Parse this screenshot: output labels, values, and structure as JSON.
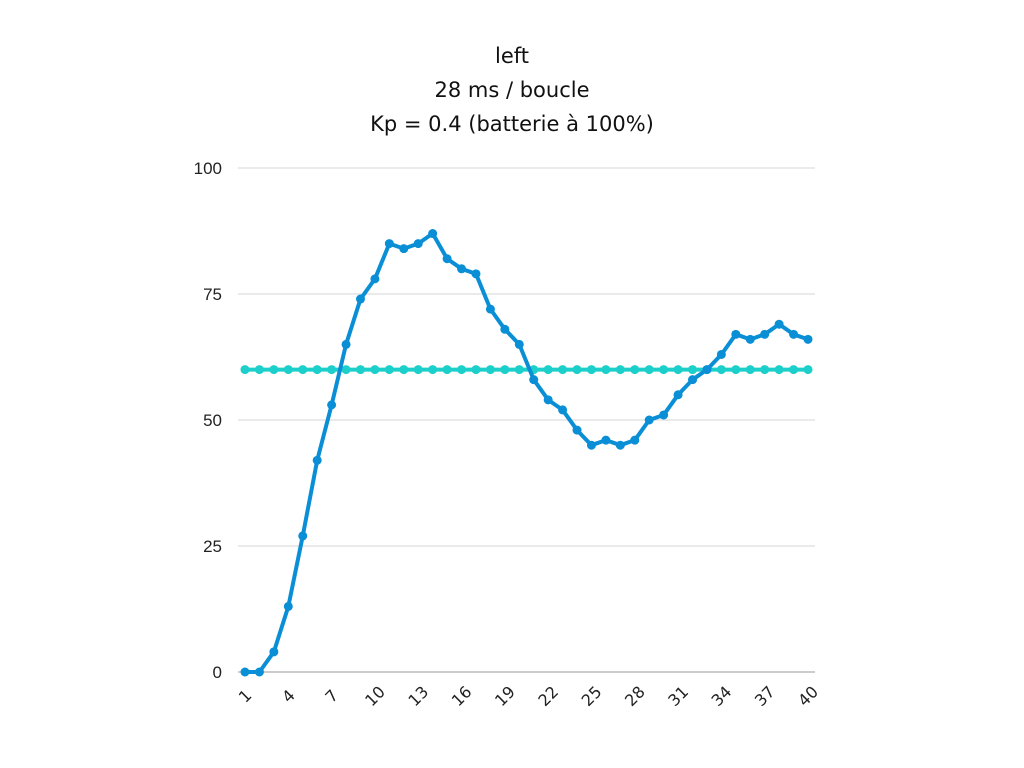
{
  "chart_data": {
    "type": "line",
    "title": [
      "left",
      "28 ms / boucle",
      "Kp = 0.4 (batterie à 100%)"
    ],
    "xlabel": "",
    "ylabel": "",
    "ylim": [
      0,
      100
    ],
    "y_ticks": [
      0,
      25,
      50,
      75,
      100
    ],
    "x": [
      1,
      2,
      3,
      4,
      5,
      6,
      7,
      8,
      9,
      10,
      11,
      12,
      13,
      14,
      15,
      16,
      17,
      18,
      19,
      20,
      21,
      22,
      23,
      24,
      25,
      26,
      27,
      28,
      29,
      30,
      31,
      32,
      33,
      34,
      35,
      36,
      37,
      38,
      39,
      40
    ],
    "x_tick_labels": [
      "1",
      "4",
      "7",
      "10",
      "13",
      "16",
      "19",
      "22",
      "25",
      "28",
      "31",
      "34",
      "37",
      "40"
    ],
    "grid": true,
    "series": [
      {
        "color": "#0a8fd6",
        "values": [
          0,
          0,
          4,
          13,
          27,
          42,
          53,
          65,
          74,
          78,
          85,
          84,
          85,
          87,
          82,
          80,
          79,
          72,
          68,
          65,
          58,
          54,
          52,
          48,
          45,
          46,
          45,
          46,
          50,
          51,
          55,
          58,
          60,
          63,
          67,
          66,
          67,
          69,
          67,
          66
        ]
      },
      {
        "color": "#1ccfca",
        "values": [
          60,
          60,
          60,
          60,
          60,
          60,
          60,
          60,
          60,
          60,
          60,
          60,
          60,
          60,
          60,
          60,
          60,
          60,
          60,
          60,
          60,
          60,
          60,
          60,
          60,
          60,
          60,
          60,
          60,
          60,
          60,
          60,
          60,
          60,
          60,
          60,
          60,
          60,
          60,
          60
        ]
      }
    ]
  }
}
